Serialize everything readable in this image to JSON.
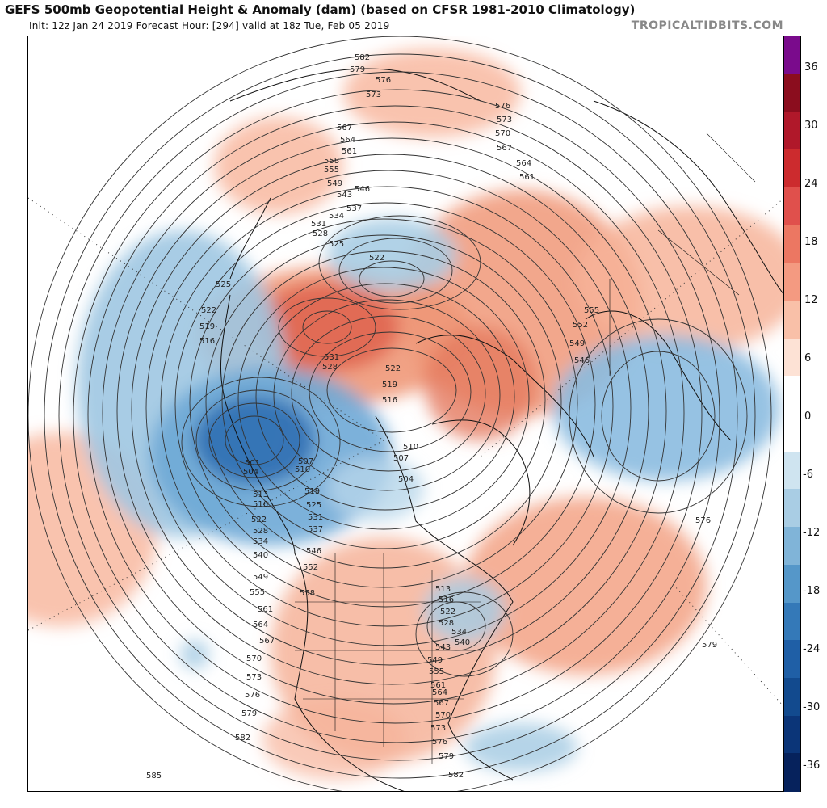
{
  "header": {
    "title": "GEFS 500mb Geopotential Height & Anomaly (dam) (based on CFSR 1981-2010 Climatology)",
    "subtitle": "Init: 12z Jan 24 2019   Forecast Hour: [294]   valid at 18z Tue, Feb 05 2019",
    "brand": "TROPICALTIDBITS.COM"
  },
  "colorbar": {
    "ticks": [
      "36",
      "30",
      "24",
      "18",
      "12",
      "6",
      "0",
      "-6",
      "-12",
      "-18",
      "-24",
      "-30",
      "-36"
    ],
    "colors": [
      "#7a0b8c",
      "#8b0d1e",
      "#b0182a",
      "#cc2b2e",
      "#e0504c",
      "#ec7762",
      "#f49a81",
      "#f9c0a8",
      "#fde2d5",
      "#ffffff",
      "#ffffff",
      "#cfe4f0",
      "#a9cde4",
      "#80b4d8",
      "#5597c9",
      "#3479b8",
      "#1f5fa6",
      "#124a8e",
      "#0b3578",
      "#06225c"
    ]
  },
  "contour_labels": [
    "582",
    "579",
    "576",
    "573",
    "576",
    "573",
    "570",
    "567",
    "564",
    "561",
    "567",
    "564",
    "561",
    "558",
    "555",
    "549",
    "546",
    "543",
    "537",
    "534",
    "531",
    "528",
    "525",
    "522",
    "525",
    "522",
    "519",
    "516",
    "555",
    "552",
    "549",
    "546",
    "531",
    "528",
    "522",
    "519",
    "516",
    "510",
    "507",
    "504",
    "501",
    "504",
    "507",
    "510",
    "513",
    "516",
    "519",
    "522",
    "525",
    "528",
    "531",
    "534",
    "537",
    "540",
    "546",
    "549",
    "552",
    "555",
    "558",
    "561",
    "564",
    "567",
    "570",
    "573",
    "576",
    "579",
    "582",
    "585",
    "513",
    "516",
    "522",
    "528",
    "534",
    "540",
    "543",
    "549",
    "555",
    "561",
    "564",
    "567",
    "570",
    "573",
    "576",
    "579",
    "582",
    "576",
    "579"
  ],
  "colors": {
    "positive_anomaly": "#f2a385",
    "negative_anomaly": "#5b9bd0",
    "contour": "#333333",
    "brand_gray": "#888888"
  }
}
